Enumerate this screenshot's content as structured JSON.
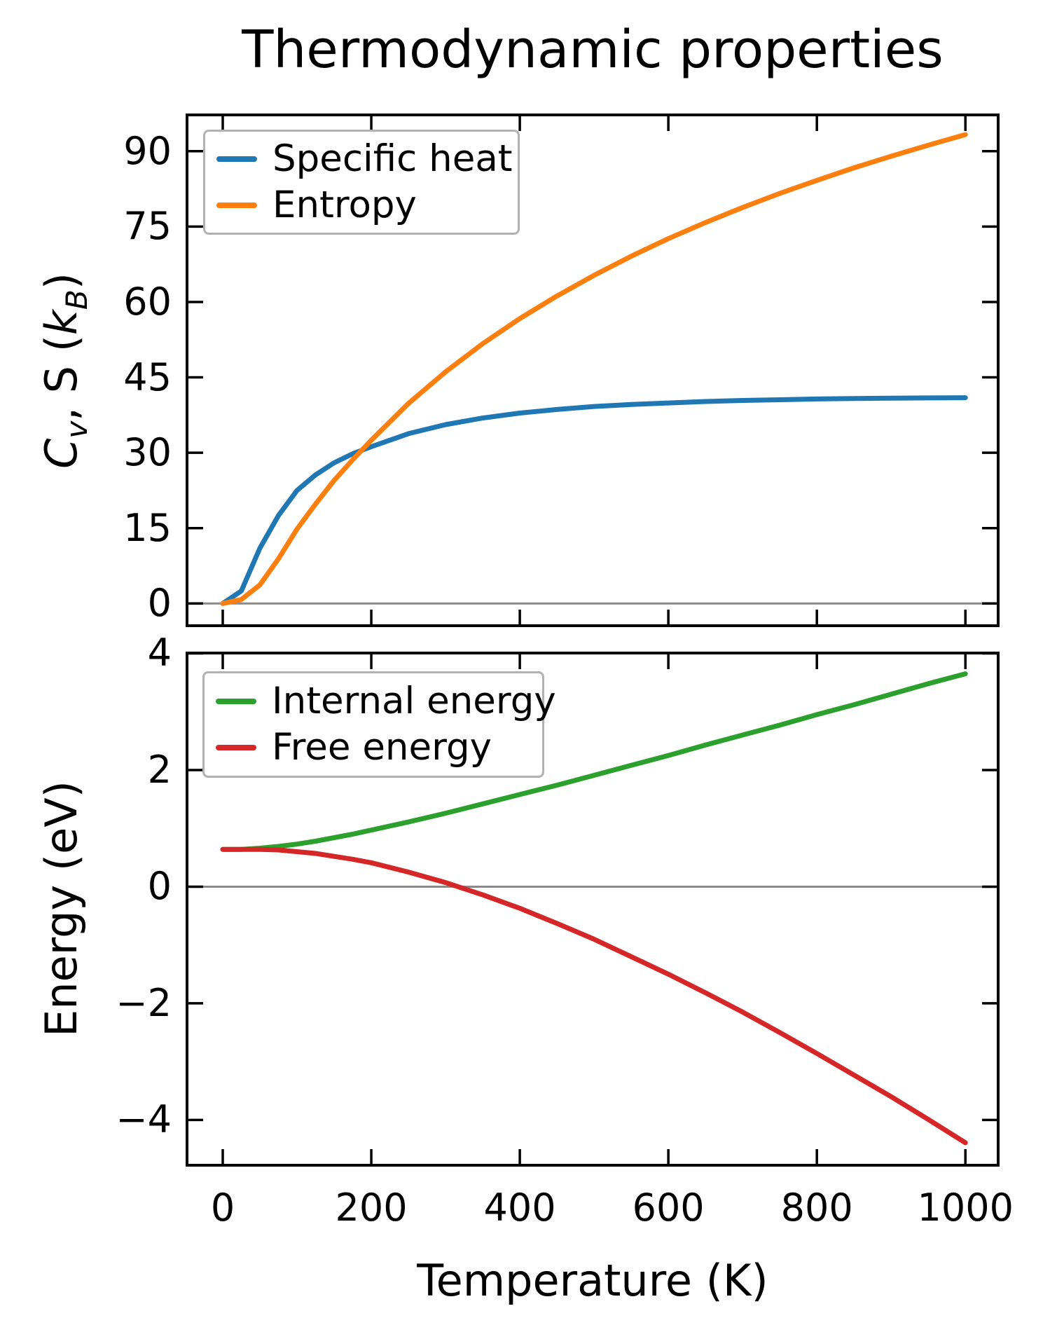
{
  "figure_title": "Thermodynamic properties",
  "background_color": "#ffffff",
  "spine_color": "#000000",
  "zero_line_color": "#8a8a8a",
  "legend_border_color": "#b2b2b2",
  "chart_data": [
    {
      "type": "line",
      "title": "",
      "xlabel": "",
      "ylabel": "C_v, S (k_B)",
      "ylabel_segments": [
        {
          "text": "C",
          "italic": true
        },
        {
          "text": "v",
          "italic": true,
          "sub": true
        },
        {
          "text": ", S ("
        },
        {
          "text": "k",
          "italic": true
        },
        {
          "text": "B",
          "italic": true,
          "sub": true
        },
        {
          "text": ")"
        }
      ],
      "xlim": [
        -50,
        1046
      ],
      "ylim": [
        -4.7,
        97.5
      ],
      "xtick_values": [
        0,
        200,
        400,
        600,
        800,
        1000
      ],
      "xtick_labels": [],
      "ytick_values": [
        0,
        15,
        30,
        45,
        60,
        75,
        90
      ],
      "ytick_labels": [
        "0",
        "15",
        "30",
        "45",
        "60",
        "75",
        "90"
      ],
      "grid": false,
      "zero_line_y": 0,
      "legend_position": "upper left",
      "legend": [
        {
          "label": "Specific heat",
          "color": "#1f77b4"
        },
        {
          "label": "Entropy",
          "color": "#ff7f0e"
        }
      ],
      "x": [
        0,
        25,
        50,
        75,
        100,
        125,
        150,
        175,
        200,
        250,
        300,
        350,
        400,
        450,
        500,
        550,
        600,
        650,
        700,
        750,
        800,
        850,
        900,
        950,
        1000
      ],
      "series": [
        {
          "name": "Specific heat",
          "color": "#1f77b4",
          "values": [
            0,
            2.5,
            11,
            17.5,
            22.5,
            25.6,
            28,
            29.8,
            31.2,
            33.8,
            35.6,
            36.9,
            37.9,
            38.6,
            39.2,
            39.6,
            39.9,
            40.2,
            40.4,
            40.55,
            40.7,
            40.8,
            40.85,
            40.9,
            40.95
          ]
        },
        {
          "name": "Entropy",
          "color": "#ff7f0e",
          "values": [
            0,
            0.8,
            3.7,
            8.9,
            14.8,
            19.8,
            24.5,
            28.6,
            32.5,
            39.8,
            46.1,
            51.7,
            56.7,
            61.2,
            65.3,
            69.1,
            72.6,
            75.8,
            78.8,
            81.6,
            84.2,
            86.7,
            89.0,
            91.2,
            93.3
          ]
        }
      ]
    },
    {
      "type": "line",
      "title": "",
      "xlabel": "Temperature (K)",
      "ylabel": "Energy (eV)",
      "ylabel_segments": [
        {
          "text": "Energy (eV)"
        }
      ],
      "xlim": [
        -50,
        1046
      ],
      "ylim": [
        -4.8,
        4.03
      ],
      "xtick_values": [
        0,
        200,
        400,
        600,
        800,
        1000
      ],
      "xtick_labels": [
        "0",
        "200",
        "400",
        "600",
        "800",
        "1000"
      ],
      "ytick_values": [
        4,
        2,
        0,
        -2,
        -4
      ],
      "ytick_labels": [
        "4",
        "2",
        "0",
        "−2",
        "−4"
      ],
      "grid": false,
      "zero_line_y": 0,
      "legend_position": "upper left",
      "legend": [
        {
          "label": "Internal energy",
          "color": "#2ca02c"
        },
        {
          "label": "Free energy",
          "color": "#d62728"
        }
      ],
      "x": [
        0,
        25,
        50,
        75,
        100,
        125,
        150,
        175,
        200,
        250,
        300,
        350,
        400,
        450,
        500,
        550,
        600,
        650,
        700,
        750,
        800,
        850,
        900,
        950,
        1000
      ],
      "series": [
        {
          "name": "Internal energy",
          "color": "#2ca02c",
          "values": [
            0.64,
            0.64,
            0.66,
            0.69,
            0.73,
            0.78,
            0.84,
            0.9,
            0.97,
            1.11,
            1.26,
            1.42,
            1.58,
            1.74,
            1.91,
            2.08,
            2.25,
            2.43,
            2.6,
            2.77,
            2.95,
            3.12,
            3.3,
            3.48,
            3.65
          ]
        },
        {
          "name": "Free energy",
          "color": "#d62728",
          "values": [
            0.64,
            0.64,
            0.64,
            0.63,
            0.6,
            0.57,
            0.52,
            0.47,
            0.41,
            0.25,
            0.07,
            -0.14,
            -0.37,
            -0.63,
            -0.9,
            -1.2,
            -1.5,
            -1.82,
            -2.15,
            -2.5,
            -2.86,
            -3.23,
            -3.6,
            -3.99,
            -4.39
          ]
        }
      ]
    }
  ]
}
